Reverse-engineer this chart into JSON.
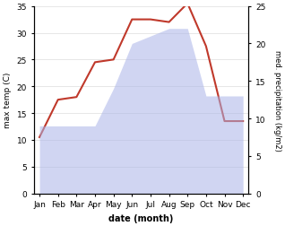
{
  "months": [
    "Jan",
    "Feb",
    "Mar",
    "Apr",
    "May",
    "Jun",
    "Jul",
    "Aug",
    "Sep",
    "Oct",
    "Nov",
    "Dec"
  ],
  "month_positions": [
    0,
    1,
    2,
    3,
    4,
    5,
    6,
    7,
    8,
    9,
    10,
    11
  ],
  "temperature": [
    10.5,
    17.5,
    18.0,
    24.5,
    25.0,
    32.5,
    32.5,
    32.0,
    35.5,
    27.5,
    13.5,
    13.5
  ],
  "precipitation": [
    9,
    9,
    9,
    9,
    14,
    20,
    21,
    22,
    22,
    13,
    13,
    13
  ],
  "temp_color": "#c0392b",
  "precip_color": "#aab4e8",
  "background_color": "#ffffff",
  "xlabel": "date (month)",
  "ylabel_left": "max temp (C)",
  "ylabel_right": "med. precipitation (kg/m2)",
  "ylim_left": [
    0,
    35
  ],
  "ylim_right": [
    0,
    25
  ],
  "yticks_left": [
    0,
    5,
    10,
    15,
    20,
    25,
    30,
    35
  ],
  "yticks_right": [
    0,
    5,
    10,
    15,
    20,
    25
  ],
  "figsize": [
    3.18,
    2.53
  ],
  "dpi": 100
}
